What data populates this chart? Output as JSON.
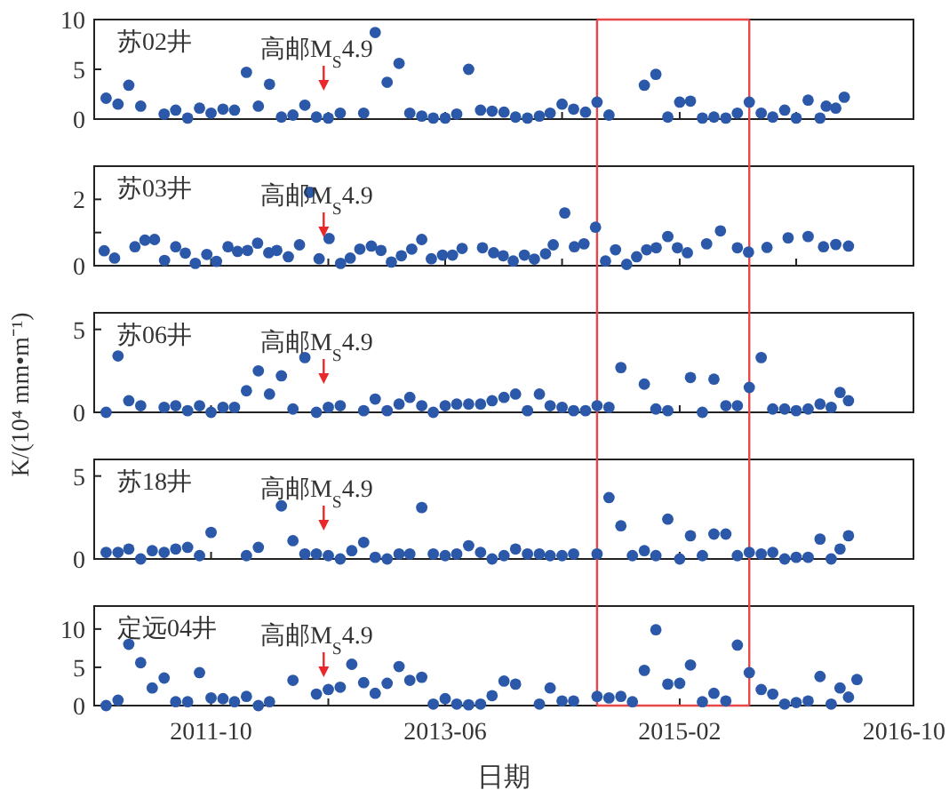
{
  "chart_data": [
    {
      "type": "scatter",
      "title": "苏02井",
      "color": "#2b58a8",
      "marker": "circle",
      "xlim": [
        "2010-12",
        "2016-10"
      ],
      "xticks": [
        "2011-10",
        {
          "value": "2012-08",
          "label": null
        },
        "2013-06",
        {
          "value": "2014-04",
          "label": null
        },
        "2015-02",
        {
          "value": "2015-12",
          "label": null
        },
        "2016-10"
      ],
      "ylim": [
        0,
        10
      ],
      "yticks": [
        0,
        5,
        10
      ],
      "tick_labels": "y",
      "x": [
        "2011-01",
        "2011-02",
        "2011-03",
        "2011-04",
        "2011-06",
        "2011-07",
        "2011-08",
        "2011-09",
        "2011-10",
        "2011-11",
        "2011-12",
        "2012-01",
        "2012-02",
        "2012-03",
        "2012-04",
        "2012-05",
        "2012-06",
        "2012-07",
        "2012-08",
        "2012-09",
        "2012-11",
        "2012-12",
        "2013-01",
        "2013-02",
        "2013-03",
        "2013-04",
        "2013-05",
        "2013-06",
        "2013-07",
        "2013-08",
        "2013-09",
        "2013-10",
        "2013-11",
        "2013-12",
        "2014-01",
        "2014-02",
        "2014-03",
        "2014-04",
        "2014-05",
        "2014-06",
        "2014-07",
        "2014-08",
        "2014-11",
        "2014-12",
        "2015-01",
        "2015-02",
        "2015-03",
        "2015-04",
        "2015-05",
        "2015-06",
        "2015-07",
        "2015-08",
        "2015-09",
        "2015-10",
        "2015-11",
        "2015-12",
        "2016-01",
        "2016-02",
        "2016-02-17",
        "2016-03-13",
        "2016-04-04"
      ],
      "values": [
        2.1,
        1.5,
        3.4,
        1.3,
        0.5,
        0.9,
        0.1,
        1.1,
        0.6,
        1.0,
        0.9,
        4.7,
        1.3,
        3.5,
        0.2,
        0.4,
        1.4,
        0.2,
        0.1,
        0.6,
        0.6,
        8.7,
        3.7,
        5.6,
        0.6,
        0.3,
        0.1,
        0.1,
        0.5,
        5.0,
        0.9,
        0.8,
        0.7,
        0.2,
        0.1,
        0.3,
        0.6,
        1.5,
        1.0,
        0.7,
        1.7,
        0.4,
        3.4,
        4.5,
        0.2,
        1.7,
        1.8,
        0.1,
        0.2,
        0.1,
        0.6,
        1.7,
        0.6,
        0.2,
        0.9,
        0.1,
        1.9,
        0.1,
        1.3,
        1.1,
        2.2
      ],
      "ref_lines": [
        {
          "axis": "x",
          "value": "2012-07-20",
          "label": "高邮M$_{S}$4.9",
          "color": "#e8282b"
        },
        {
          "axis": "x",
          "value": "2014-07",
          "color": "#e8474a"
        },
        {
          "axis": "x",
          "value": "2015-08",
          "color": "#e8474a"
        }
      ]
    },
    {
      "type": "scatter",
      "title": "苏03井",
      "color": "#2b58a8",
      "marker": "circle",
      "xlim": [
        "2010-12",
        "2016-10"
      ],
      "xticks": [
        "2011-10",
        {
          "value": "2012-08",
          "label": null
        },
        "2013-06",
        {
          "value": "2014-04",
          "label": null
        },
        "2015-02",
        {
          "value": "2015-12",
          "label": null
        },
        "2016-10"
      ],
      "ylim": [
        0,
        3
      ],
      "yticks": [
        0,
        {
          "value": 1,
          "label": null
        },
        2
      ],
      "tick_labels": "y",
      "x": [
        "2010-12-27",
        "2011-01-23",
        "2011-03-17",
        "2011-04-12",
        "2011-05-07",
        "2011-06-02",
        "2011-07-01",
        "2011-07-26",
        "2011-08-21",
        "2011-09-20",
        "2011-10-15",
        "2011-11-14",
        "2011-12-09",
        "2012-01-04",
        "2012-01-30",
        "2012-02-28",
        "2012-03-20",
        "2012-04-19",
        "2012-05-18",
        "2012-06-13",
        "2012-07-08",
        "2012-08-03",
        "2012-09-02",
        "2012-09-27",
        "2012-10-22",
        "2012-11-21",
        "2012-12-16",
        "2013-01-12",
        "2013-02-07",
        "2013-03-06",
        "2013-04-01",
        "2013-04-26",
        "2013-05-25",
        "2013-06-20",
        "2013-07-15",
        "2013-09-06",
        "2013-10-05",
        "2013-10-30",
        "2013-11-25",
        "2013-12-24",
        "2014-01-19",
        "2014-02-17",
        "2014-03-09",
        "2014-04-08",
        "2014-05-03",
        "2014-05-28",
        "2014-06-27",
        "2014-07-23",
        "2014-08-18",
        "2014-09-16",
        "2014-10-12",
        "2014-11-07",
        "2014-12-02",
        "2015-01-01",
        "2015-01-26",
        "2015-02-21",
        "2015-04-12",
        "2015-05-18",
        "2015-07-01",
        "2015-07-30",
        "2015-09-16",
        "2015-11-10",
        "2016-01-01",
        "2016-02-10",
        "2016-03-13",
        "2016-04-15"
      ],
      "values": [
        0.45,
        0.23,
        0.57,
        0.77,
        0.79,
        0.16,
        0.57,
        0.38,
        0.07,
        0.34,
        0.13,
        0.57,
        0.43,
        0.46,
        0.68,
        0.39,
        0.46,
        0.27,
        0.63,
        2.21,
        0.21,
        0.82,
        0.07,
        0.23,
        0.5,
        0.59,
        0.46,
        0.11,
        0.3,
        0.5,
        0.79,
        0.21,
        0.32,
        0.32,
        0.52,
        0.54,
        0.39,
        0.3,
        0.14,
        0.32,
        0.2,
        0.36,
        0.63,
        1.59,
        0.57,
        0.66,
        1.16,
        0.14,
        0.48,
        0.04,
        0.27,
        0.48,
        0.54,
        0.88,
        0.54,
        0.39,
        0.66,
        1.05,
        0.54,
        0.41,
        0.55,
        0.84,
        0.88,
        0.57,
        0.64,
        0.59
      ],
      "ref_lines": [
        {
          "axis": "x",
          "value": "2012-07-20",
          "label": "高邮M$_{S}$4.9",
          "color": "#e8282b"
        },
        {
          "axis": "x",
          "value": "2014-07",
          "color": "#e8474a"
        },
        {
          "axis": "x",
          "value": "2015-08",
          "color": "#e8474a"
        }
      ]
    },
    {
      "type": "scatter",
      "title": "苏06井",
      "ylabel": "K/(10⁴ mm•m⁻¹)",
      "color": "#2b58a8",
      "marker": "circle",
      "xlim": [
        "2010-12",
        "2016-10"
      ],
      "xticks": [
        "2011-10",
        {
          "value": "2012-08",
          "label": null
        },
        "2013-06",
        {
          "value": "2014-04",
          "label": null
        },
        "2015-02",
        {
          "value": "2015-12",
          "label": null
        },
        "2016-10"
      ],
      "ylim": [
        0,
        6
      ],
      "yticks": [
        0,
        5
      ],
      "tick_labels": "y",
      "x": [
        "2011-01",
        "2011-02",
        "2011-03",
        "2011-04",
        "2011-06",
        "2011-07",
        "2011-08",
        "2011-09",
        "2011-10",
        "2011-11",
        "2011-12",
        "2012-01",
        "2012-02",
        "2012-03",
        "2012-04",
        "2012-05",
        "2012-06",
        "2012-07",
        "2012-08",
        "2012-09",
        "2012-11",
        "2012-12",
        "2013-01",
        "2013-02",
        "2013-03",
        "2013-04",
        "2013-05",
        "2013-06",
        "2013-07",
        "2013-08",
        "2013-09",
        "2013-10",
        "2013-11",
        "2013-12",
        "2014-01",
        "2014-02",
        "2014-03",
        "2014-04",
        "2014-05",
        "2014-06",
        "2014-07",
        "2014-08",
        "2014-09",
        "2014-11",
        "2014-12",
        "2015-01",
        "2015-03",
        "2015-04",
        "2015-05",
        "2015-06",
        "2015-07",
        "2015-08",
        "2015-09",
        "2015-10",
        "2015-11",
        "2015-12",
        "2016-01",
        "2016-02",
        "2016-03",
        "2016-03-24",
        "2016-04-15"
      ],
      "values": [
        0,
        3.4,
        0.7,
        0.4,
        0.3,
        0.4,
        0.1,
        0.4,
        0,
        0.3,
        0.3,
        1.3,
        2.5,
        1.1,
        2.2,
        0.2,
        3.3,
        0,
        0.3,
        0.4,
        0.1,
        0.8,
        0.1,
        0.5,
        0.9,
        0.4,
        0,
        0.4,
        0.5,
        0.5,
        0.5,
        0.7,
        0.9,
        1.1,
        0.1,
        1.1,
        0.4,
        0.3,
        0.1,
        0.1,
        0.4,
        0.3,
        2.7,
        1.7,
        0.2,
        0.1,
        2.1,
        0,
        2,
        0.4,
        0.4,
        1.5,
        3.3,
        0.2,
        0.2,
        0.1,
        0.2,
        0.5,
        0.3,
        1.2,
        0.7
      ],
      "ref_lines": [
        {
          "axis": "x",
          "value": "2012-07-20",
          "label": "高邮M$_{S}$4.9",
          "color": "#e8282b"
        },
        {
          "axis": "x",
          "value": "2014-07",
          "color": "#e8474a"
        },
        {
          "axis": "x",
          "value": "2015-08",
          "color": "#e8474a"
        }
      ]
    },
    {
      "type": "scatter",
      "title": "苏18井",
      "color": "#2b58a8",
      "marker": "circle",
      "xlim": [
        "2010-12",
        "2016-10"
      ],
      "xticks": [
        "2011-10",
        {
          "value": "2012-08",
          "label": null
        },
        "2013-06",
        {
          "value": "2014-04",
          "label": null
        },
        "2015-02",
        {
          "value": "2015-12",
          "label": null
        },
        "2016-10"
      ],
      "ylim": [
        0,
        6
      ],
      "yticks": [
        0,
        5
      ],
      "tick_labels": "y",
      "x": [
        "2011-01",
        "2011-02",
        "2011-03",
        "2011-04",
        "2011-05",
        "2011-06",
        "2011-07",
        "2011-08",
        "2011-09",
        "2011-10",
        "2012-01",
        "2012-02",
        "2012-04",
        "2012-05",
        "2012-06",
        "2012-07",
        "2012-08",
        "2012-09",
        "2012-10",
        "2012-11",
        "2012-12",
        "2013-01",
        "2013-02",
        "2013-03",
        "2013-04",
        "2013-05",
        "2013-06",
        "2013-07",
        "2013-08",
        "2013-09",
        "2013-10",
        "2013-11",
        "2013-12",
        "2014-01",
        "2014-02",
        "2014-03",
        "2014-04",
        "2014-05",
        "2014-07",
        "2014-08",
        "2014-09",
        "2014-10",
        "2014-11",
        "2014-12",
        "2015-01",
        "2015-02",
        "2015-03",
        "2015-04",
        "2015-05",
        "2015-06",
        "2015-07",
        "2015-08",
        "2015-09",
        "2015-10",
        "2015-11",
        "2015-12",
        "2016-01",
        "2016-02",
        "2016-03",
        "2016-03-24",
        "2016-04-15"
      ],
      "values": [
        0.4,
        0.4,
        0.6,
        0,
        0.5,
        0.4,
        0.6,
        0.7,
        0.2,
        1.6,
        0.2,
        0.7,
        3.2,
        1.1,
        0.3,
        0.3,
        0.2,
        0,
        0.5,
        1,
        0.1,
        0,
        0.3,
        0.3,
        3.1,
        0.3,
        0.2,
        0.3,
        0.8,
        0.4,
        0,
        0.2,
        0.6,
        0.3,
        0.3,
        0.2,
        0.2,
        0.3,
        0.3,
        3.7,
        2,
        0.2,
        0.5,
        0.2,
        2.4,
        0,
        1.4,
        0.2,
        1.5,
        1.5,
        0.2,
        0.4,
        0.3,
        0.4,
        0,
        0.1,
        0.1,
        1.2,
        0,
        0.6,
        1.4
      ],
      "ref_lines": [
        {
          "axis": "x",
          "value": "2012-07-20",
          "label": "高邮M$_{S}$4.9",
          "color": "#e8282b"
        },
        {
          "axis": "x",
          "value": "2014-07",
          "color": "#e8474a"
        },
        {
          "axis": "x",
          "value": "2015-08",
          "color": "#e8474a"
        }
      ]
    },
    {
      "type": "scatter",
      "title": "定远04井",
      "xlabel": "日期",
      "color": "#2b58a8",
      "marker": "circle",
      "xlim": [
        "2010-12",
        "2016-10"
      ],
      "xticks": [
        "2011-10",
        {
          "value": "2012-08",
          "label": null
        },
        "2013-06",
        {
          "value": "2014-04",
          "label": null
        },
        "2015-02",
        {
          "value": "2015-12",
          "label": null
        },
        "2016-10"
      ],
      "ylim": [
        0,
        13
      ],
      "yticks": [
        0,
        5,
        10
      ],
      "x": [
        "2011-01",
        "2011-02",
        "2011-03",
        "2011-04",
        "2011-05",
        "2011-06",
        "2011-07",
        "2011-08",
        "2011-09",
        "2011-10",
        "2011-11",
        "2011-12",
        "2012-01",
        "2012-02",
        "2012-03",
        "2012-05",
        "2012-07",
        "2012-08",
        "2012-09",
        "2012-10",
        "2012-11",
        "2012-12",
        "2013-01",
        "2013-02",
        "2013-03",
        "2013-04",
        "2013-05",
        "2013-06",
        "2013-07",
        "2013-08",
        "2013-09",
        "2013-10",
        "2013-11",
        "2013-12",
        "2014-02",
        "2014-03",
        "2014-04",
        "2014-05",
        "2014-07",
        "2014-08",
        "2014-09",
        "2014-10",
        "2014-11",
        "2014-12",
        "2015-01",
        "2015-02",
        "2015-03",
        "2015-04",
        "2015-05",
        "2015-06",
        "2015-07",
        "2015-08",
        "2015-09",
        "2015-10",
        "2015-11",
        "2015-12",
        "2016-01",
        "2016-02",
        "2016-03",
        "2016-03-24",
        "2016-04-15",
        "2016-05-07"
      ],
      "values": [
        0,
        0.7,
        8,
        5.6,
        2.3,
        3.6,
        0.5,
        0.5,
        4.3,
        1,
        0.9,
        0.5,
        1.2,
        0,
        0.5,
        3.3,
        1.5,
        2.1,
        2.4,
        5.4,
        3,
        1.6,
        2.9,
        5.1,
        3.3,
        3.7,
        0.2,
        0.9,
        0.2,
        0.1,
        0.2,
        1.3,
        3.2,
        2.8,
        0.2,
        2.3,
        0.6,
        0.6,
        1.2,
        1,
        1.2,
        0.5,
        4.6,
        9.9,
        2.8,
        2.9,
        5.3,
        0.5,
        1.6,
        0.6,
        7.9,
        4.3,
        2.1,
        1.5,
        0.2,
        0.4,
        0.6,
        3.8,
        0.2,
        2.3,
        1.1,
        3.4
      ],
      "ref_lines": [
        {
          "axis": "x",
          "value": "2012-07-20",
          "label": "高邮M$_{S}$4.9",
          "color": "#e8282b"
        },
        {
          "axis": "x",
          "value": "2014-07",
          "color": "#e8474a"
        },
        {
          "axis": "x",
          "value": "2015-08",
          "color": "#e8474a"
        }
      ]
    }
  ]
}
